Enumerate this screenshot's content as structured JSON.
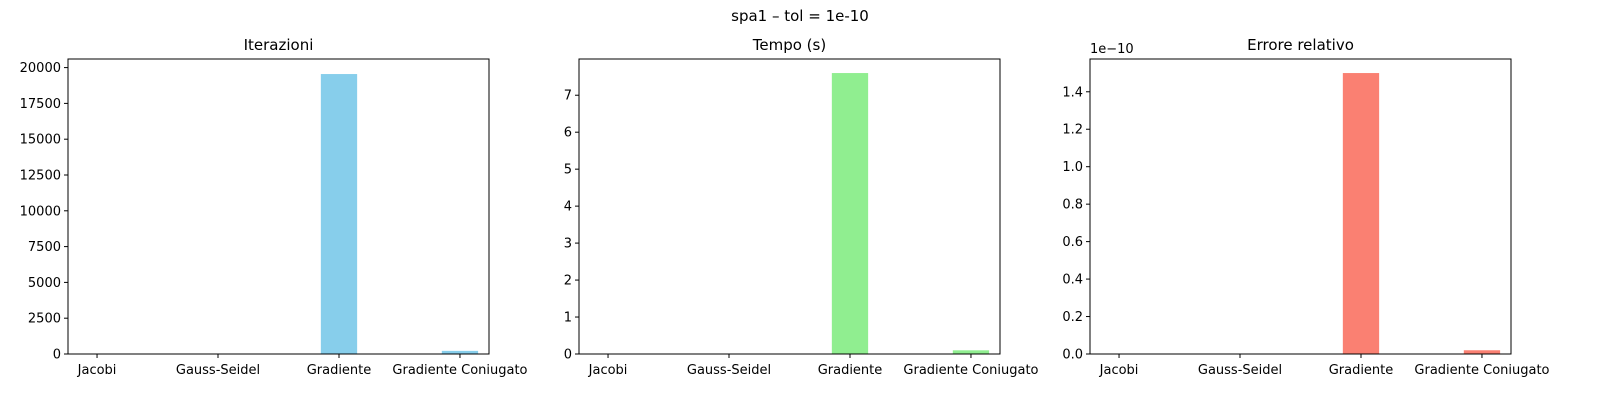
{
  "figure": {
    "suptitle": "spa1 – tol = 1e-10"
  },
  "chart_data": [
    {
      "type": "bar",
      "title": "Iterazioni",
      "categories": [
        "Jacobi",
        "Gauss-Seidel",
        "Gradiente",
        "Gradiente Coniugato"
      ],
      "values": [
        0,
        0,
        19550,
        220
      ],
      "ylim": [
        0,
        20600
      ],
      "yticks": [
        0,
        2500,
        5000,
        7500,
        10000,
        12500,
        15000,
        17500,
        20000
      ],
      "ytick_labels": [
        "0",
        "2500",
        "5000",
        "7500",
        "10000",
        "12500",
        "15000",
        "17500",
        "20000"
      ],
      "offset_text": "",
      "color": "#87CEEB"
    },
    {
      "type": "bar",
      "title": "Tempo (s)",
      "categories": [
        "Jacobi",
        "Gauss-Seidel",
        "Gradiente",
        "Gradiente Coniugato"
      ],
      "values": [
        0,
        0,
        7.6,
        0.1
      ],
      "ylim": [
        0,
        7.98
      ],
      "yticks": [
        0,
        1,
        2,
        3,
        4,
        5,
        6,
        7
      ],
      "ytick_labels": [
        "0",
        "1",
        "2",
        "3",
        "4",
        "5",
        "6",
        "7"
      ],
      "offset_text": "",
      "color": "#90EE90"
    },
    {
      "type": "bar",
      "title": "Errore relativo",
      "categories": [
        "Jacobi",
        "Gauss-Seidel",
        "Gradiente",
        "Gradiente Coniugato"
      ],
      "values": [
        0,
        0,
        1.5,
        0.02
      ],
      "ylim": [
        0,
        1.575
      ],
      "yticks": [
        0,
        0.2,
        0.4,
        0.6,
        0.8,
        1.0,
        1.2,
        1.4
      ],
      "ytick_labels": [
        "0.0",
        "0.2",
        "0.4",
        "0.6",
        "0.8",
        "1.0",
        "1.2",
        "1.4"
      ],
      "offset_text": "1e−10",
      "color": "#FA8072"
    }
  ]
}
